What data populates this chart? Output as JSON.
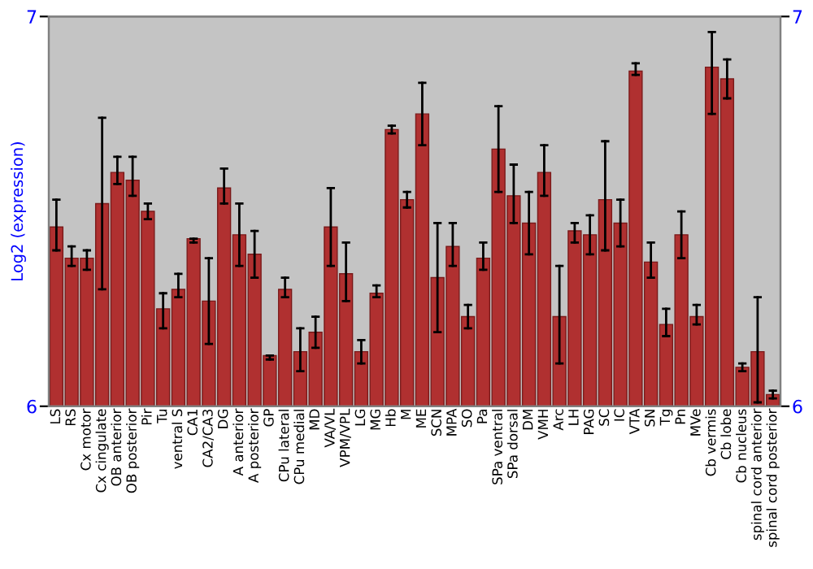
{
  "chart_data": {
    "type": "bar",
    "ylabel": "Log2 (expression)",
    "categories": [
      "LS",
      "RS",
      "Cx motor",
      "Cx cingulate",
      "OB anterior",
      "OB posterior",
      "Pir",
      "Tu",
      "ventral S",
      "CA1",
      "CA2/CA3",
      "DG",
      "A anterior",
      "A posterior",
      "GP",
      "CPu lateral",
      "CPu medial",
      "MD",
      "VA/VL",
      "VPM/VPL",
      "LG",
      "MG",
      "Hb",
      "M",
      "ME",
      "SCN",
      "MPA",
      "SO",
      "Pa",
      "SPa ventral",
      "SPa dorsal",
      "DM",
      "VMH",
      "Arc",
      "LH",
      "PAG",
      "SC",
      "IC",
      "VTA",
      "SN",
      "Tg",
      "Pn",
      "MVe",
      "Cb vermis",
      "Cb lobe",
      "Cb nucleus",
      "spinal cord anterior",
      "spinal cord posterior"
    ],
    "values": [
      6.46,
      6.38,
      6.38,
      6.52,
      6.6,
      6.58,
      6.5,
      6.25,
      6.3,
      6.43,
      6.27,
      6.56,
      6.44,
      6.39,
      6.13,
      6.3,
      6.14,
      6.19,
      6.46,
      6.34,
      6.14,
      6.29,
      6.71,
      6.53,
      6.75,
      6.33,
      6.41,
      6.23,
      6.38,
      6.66,
      6.54,
      6.47,
      6.6,
      6.23,
      6.45,
      6.44,
      6.53,
      6.47,
      6.86,
      6.37,
      6.21,
      6.44,
      6.23,
      6.87,
      6.84,
      6.1,
      6.14,
      6.03
    ],
    "errors": [
      [
        6.4,
        6.53
      ],
      [
        6.36,
        6.41
      ],
      [
        6.35,
        6.4
      ],
      [
        6.3,
        6.74
      ],
      [
        6.57,
        6.64
      ],
      [
        6.54,
        6.64
      ],
      [
        6.48,
        6.52
      ],
      [
        6.2,
        6.29
      ],
      [
        6.28,
        6.34
      ],
      [
        6.42,
        6.43
      ],
      [
        6.16,
        6.38
      ],
      [
        6.52,
        6.61
      ],
      [
        6.36,
        6.52
      ],
      [
        6.33,
        6.45
      ],
      [
        6.12,
        6.13
      ],
      [
        6.28,
        6.33
      ],
      [
        6.09,
        6.2
      ],
      [
        6.15,
        6.23
      ],
      [
        6.36,
        6.56
      ],
      [
        6.27,
        6.42
      ],
      [
        6.11,
        6.17
      ],
      [
        6.28,
        6.31
      ],
      [
        6.7,
        6.72
      ],
      [
        6.51,
        6.55
      ],
      [
        6.67,
        6.83
      ],
      [
        6.19,
        6.47
      ],
      [
        6.36,
        6.47
      ],
      [
        6.2,
        6.26
      ],
      [
        6.35,
        6.42
      ],
      [
        6.55,
        6.77
      ],
      [
        6.47,
        6.62
      ],
      [
        6.39,
        6.55
      ],
      [
        6.54,
        6.67
      ],
      [
        6.11,
        6.36
      ],
      [
        6.42,
        6.47
      ],
      [
        6.39,
        6.49
      ],
      [
        6.4,
        6.68
      ],
      [
        6.41,
        6.53
      ],
      [
        6.85,
        6.88
      ],
      [
        6.33,
        6.42
      ],
      [
        6.18,
        6.25
      ],
      [
        6.38,
        6.5
      ],
      [
        6.21,
        6.26
      ],
      [
        6.75,
        6.96
      ],
      [
        6.79,
        6.89
      ],
      [
        6.09,
        6.11
      ],
      [
        6.01,
        6.28
      ],
      [
        6.02,
        6.04
      ]
    ],
    "color": "#b03030",
    "ylim": [
      6,
      7
    ],
    "yticks": [
      6,
      7
    ],
    "y2lim": [
      6,
      7
    ],
    "y2ticks": [
      6,
      7
    ]
  }
}
